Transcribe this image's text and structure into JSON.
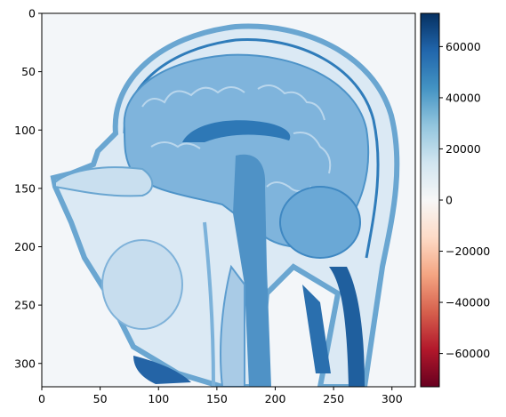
{
  "image": {
    "kind": "sagittal MRI head slice (diverging colormap render)",
    "colormap": "RdBu",
    "background_color": "#f3f6f9"
  },
  "x_axis": {
    "ticks": [
      0,
      50,
      100,
      150,
      200,
      250,
      300
    ],
    "range": [
      0,
      320
    ]
  },
  "y_axis": {
    "ticks": [
      0,
      50,
      100,
      150,
      200,
      250,
      300
    ],
    "range": [
      0,
      320
    ],
    "inverted": true
  },
  "colorbar": {
    "ticks": [
      60000,
      40000,
      20000,
      0,
      -20000,
      -40000,
      -60000
    ],
    "tick_labels": [
      "60000",
      "40000",
      "20000",
      "0",
      "−20000",
      "−40000",
      "−60000"
    ],
    "range": [
      -73000,
      73000
    ],
    "colors": [
      "#67001f",
      "#b2182b",
      "#d6604d",
      "#f4a582",
      "#fddbc7",
      "#f7f7f7",
      "#d1e5f0",
      "#92c5de",
      "#4393c3",
      "#2166ac",
      "#053061"
    ]
  }
}
